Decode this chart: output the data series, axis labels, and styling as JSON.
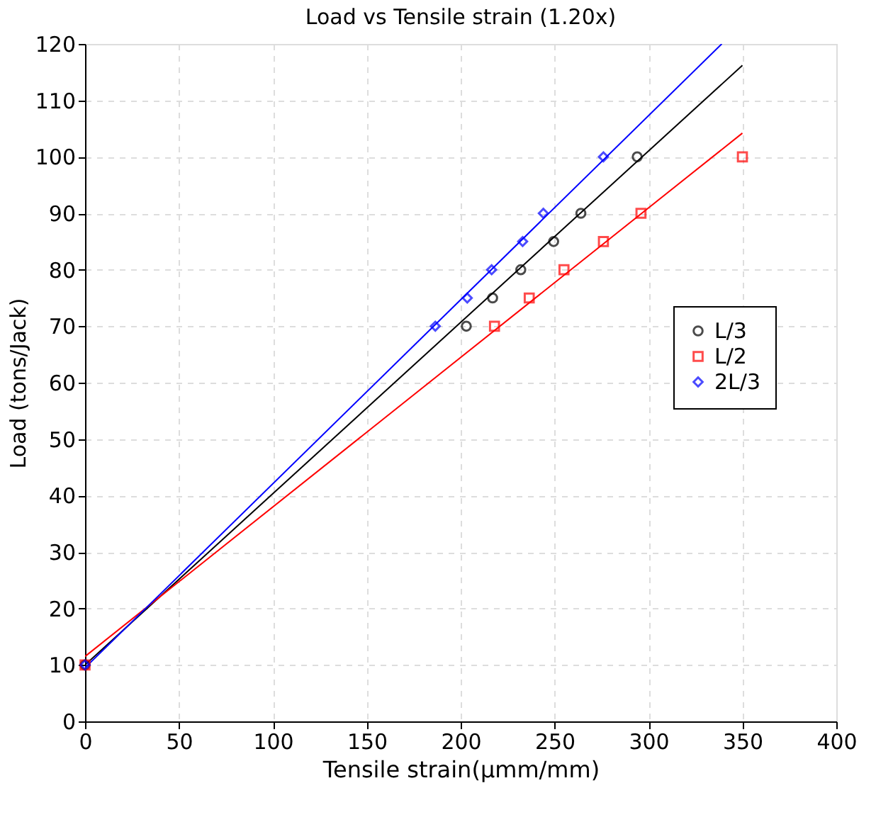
{
  "chart_data": {
    "type": "scatter",
    "title": "Load vs Tensile strain (1.20x)",
    "xlabel": "Tensile strain(μmm/mm)",
    "ylabel": "Load (tons/Jack)",
    "series": [
      {
        "name": "L/3",
        "color": "#000000",
        "marker": "circle",
        "x": [
          0,
          203,
          217,
          232,
          249.5,
          264,
          294
        ],
        "values": [
          10,
          70,
          75,
          80,
          85,
          90,
          100
        ]
      },
      {
        "name": "L/2",
        "color": "#ff0000",
        "marker": "square",
        "x": [
          0,
          218,
          236.5,
          255,
          276,
          296,
          350
        ],
        "values": [
          10,
          70,
          75,
          80,
          85,
          90,
          100
        ]
      },
      {
        "name": "2L/3",
        "color": "#0000ff",
        "marker": "diamond",
        "x": [
          0,
          186.5,
          203.5,
          216.5,
          233,
          244,
          276
        ],
        "values": [
          10,
          70,
          75,
          80,
          85,
          90,
          100
        ]
      },
      {
        "type": "line",
        "color": "#000000",
        "x": [
          0,
          350
        ],
        "values": [
          10,
          116.2
        ]
      },
      {
        "type": "line",
        "color": "#ff0000",
        "x": [
          0,
          350
        ],
        "values": [
          11.5,
          104.2
        ]
      },
      {
        "type": "line",
        "color": "#0000ff",
        "x": [
          0,
          339
        ],
        "values": [
          9.5,
          120
        ]
      }
    ],
    "xlim": [
      0,
      400
    ],
    "xticks": [
      0,
      50,
      100,
      150,
      200,
      250,
      300,
      350,
      400
    ],
    "ylim": [
      0,
      120
    ],
    "yticks": [
      0,
      10,
      20,
      30,
      40,
      50,
      60,
      70,
      80,
      90,
      100,
      110,
      120
    ],
    "grid": true,
    "legend": "right"
  }
}
